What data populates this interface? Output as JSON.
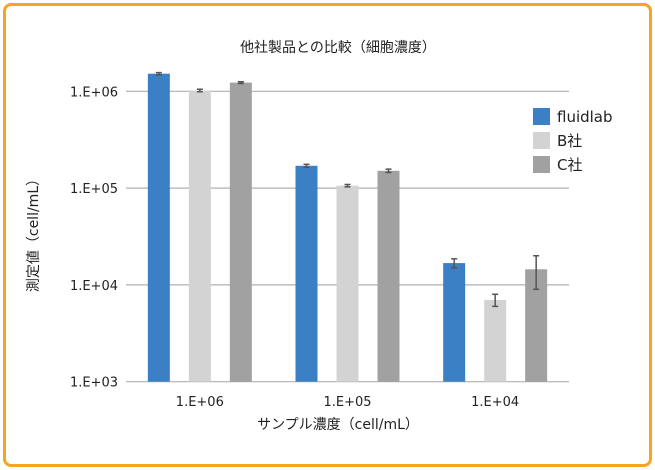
{
  "chart_data": {
    "type": "bar",
    "title": "他社製品との比較（細胞濃度）",
    "xlabel": "サンプル濃度（cell/mL）",
    "ylabel": "測定値（cell/mL）",
    "yscale": "log",
    "ylim": [
      1000,
      2000000
    ],
    "yticks": [
      1000,
      10000,
      100000,
      1000000
    ],
    "ytick_labels": [
      "1.E+03",
      "1.E+04",
      "1.E+05",
      "1.E+06"
    ],
    "categories": [
      "1.E+06",
      "1.E+05",
      "1.E+04"
    ],
    "grid": true,
    "legend_position": "right",
    "series": [
      {
        "name": "fluidlab",
        "color": "#3b80c4",
        "values": [
          1520000,
          170000,
          16800
        ],
        "errors": [
          40000,
          6000,
          1800
        ]
      },
      {
        "name": "B社",
        "color": "#d3d3d3",
        "values": [
          1020000,
          106000,
          7000
        ],
        "errors": [
          30000,
          3000,
          1000
        ]
      },
      {
        "name": "C社",
        "color": "#a0a1a0",
        "values": [
          1230000,
          151000,
          14500
        ],
        "errors": [
          25000,
          6000,
          5500
        ]
      }
    ]
  },
  "frame_color": "#f5a51e"
}
